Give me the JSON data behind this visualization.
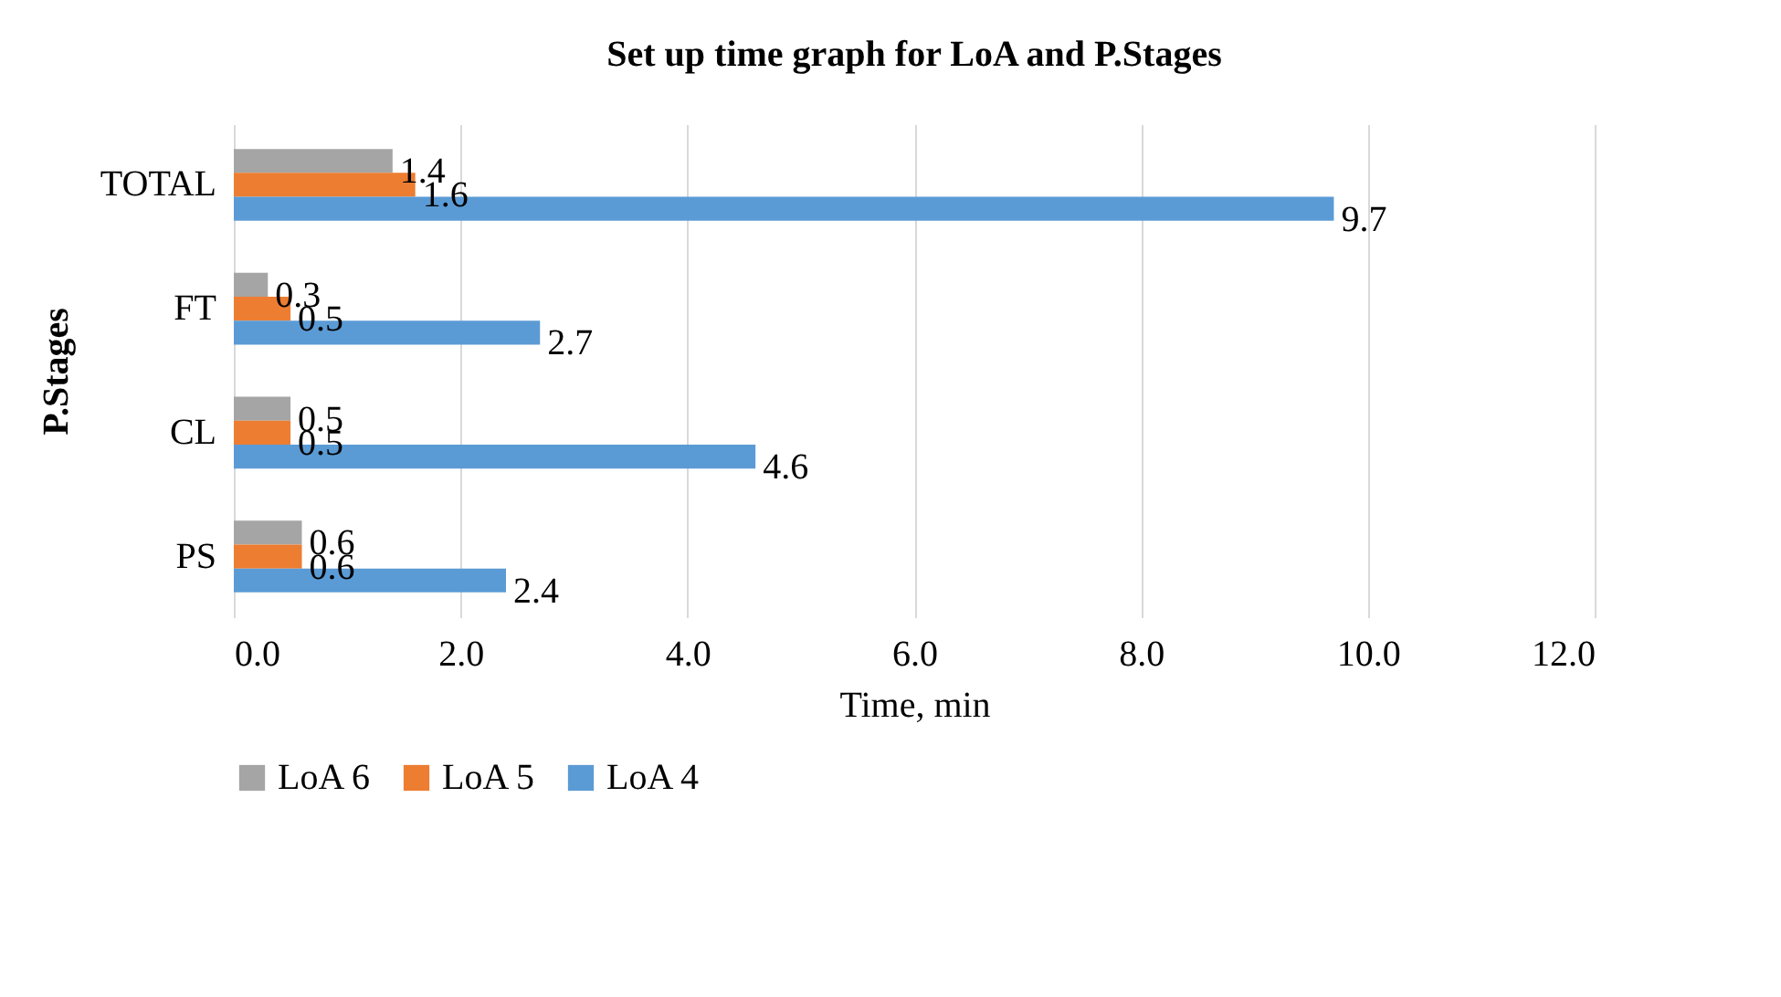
{
  "chart_data": {
    "type": "bar",
    "orientation": "horizontal",
    "title": "Set up time graph for LoA and P.Stages",
    "xlabel": "Time, min",
    "ylabel": "P.Stages",
    "categories": [
      "TOTAL",
      "FT",
      "CL",
      "PS"
    ],
    "series": [
      {
        "name": "LoA 6",
        "color": "#a5a5a5",
        "values": [
          1.4,
          0.3,
          0.5,
          0.6
        ]
      },
      {
        "name": "LoA 5",
        "color": "#ed7d31",
        "values": [
          1.6,
          0.5,
          0.5,
          0.6
        ]
      },
      {
        "name": "LoA 4",
        "color": "#5b9bd5",
        "values": [
          9.7,
          2.7,
          4.6,
          2.4
        ]
      }
    ],
    "xlim": [
      0,
      12
    ],
    "xticks": [
      {
        "value": 0,
        "label": "0.0"
      },
      {
        "value": 2,
        "label": "2.0"
      },
      {
        "value": 4,
        "label": "4.0"
      },
      {
        "value": 6,
        "label": "6.0"
      },
      {
        "value": 8,
        "label": "8.0"
      },
      {
        "value": 10,
        "label": "10.0"
      },
      {
        "value": 12,
        "label": "12.0"
      }
    ],
    "grid": "x",
    "legend": "bottom",
    "data_labels": true
  }
}
